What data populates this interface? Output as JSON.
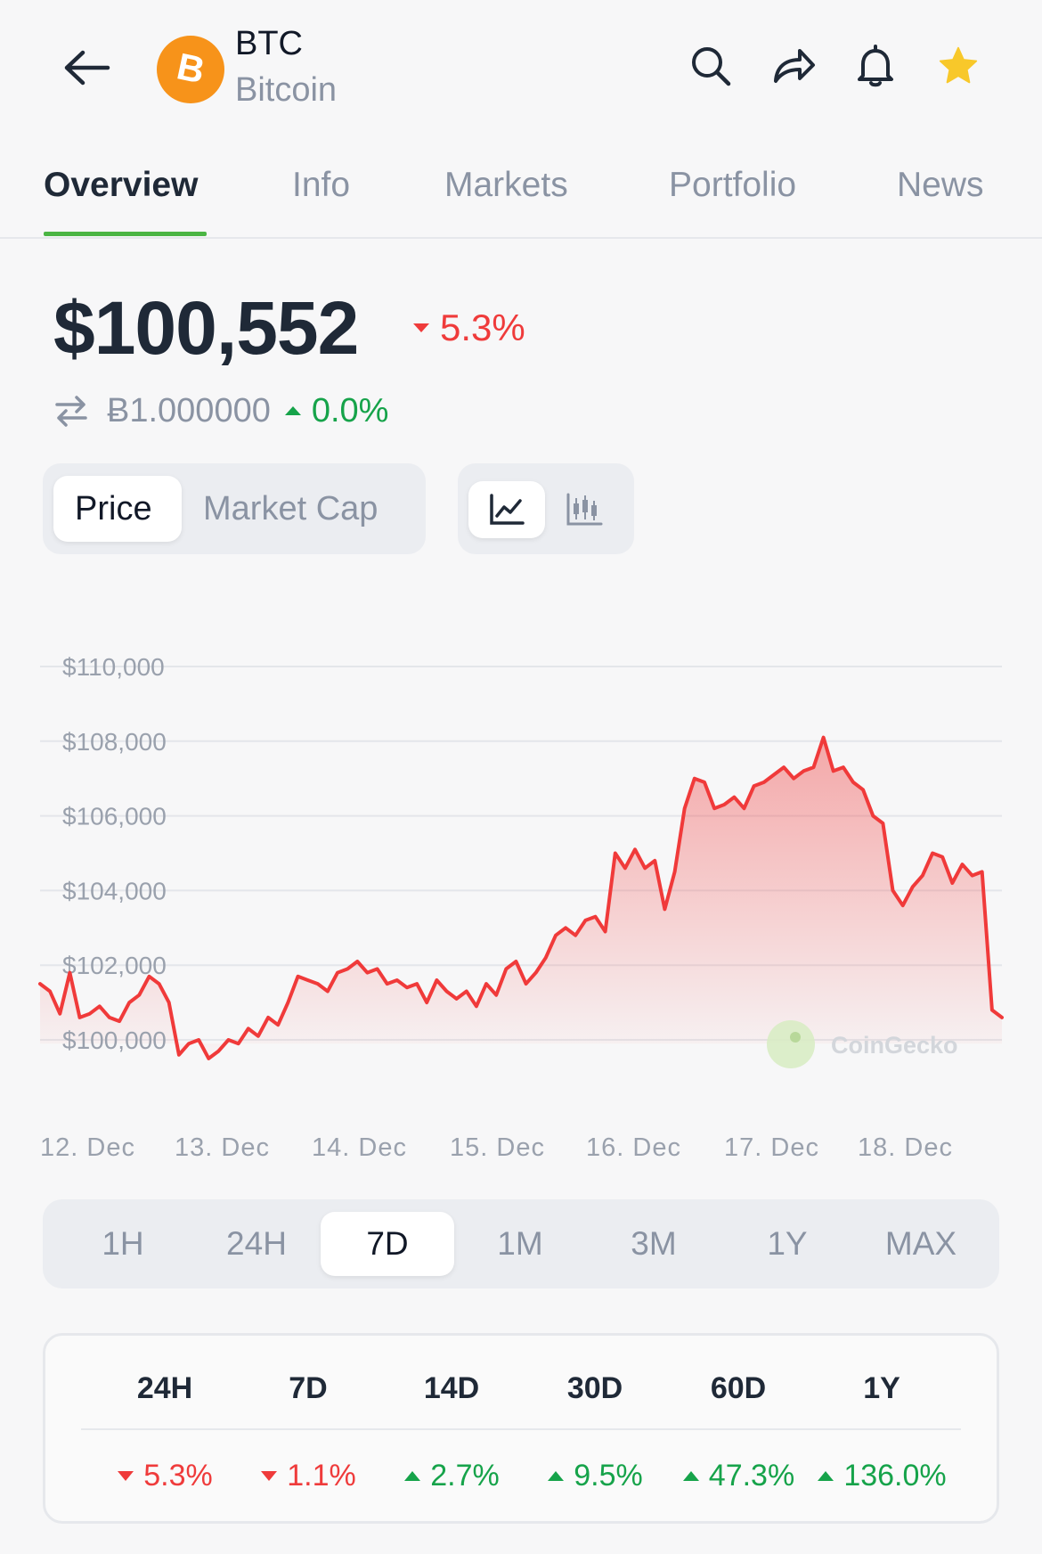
{
  "header": {
    "symbol": "BTC",
    "name": "Bitcoin",
    "icons": [
      "back-arrow-icon",
      "bitcoin-logo-icon",
      "search-icon",
      "share-icon",
      "bell-icon",
      "star-icon"
    ],
    "star_color": "#f8c82a"
  },
  "tabs": [
    {
      "label": "Overview",
      "active": true
    },
    {
      "label": "Info"
    },
    {
      "label": "Markets"
    },
    {
      "label": "Portfolio"
    },
    {
      "label": "News"
    }
  ],
  "price": {
    "value": "$100,552",
    "change": "5.3%",
    "change_direction": "down",
    "btc_value": "Ƀ1.000000",
    "btc_change": "0.0%",
    "btc_change_direction": "up"
  },
  "toggles": {
    "metric": {
      "options": [
        "Price",
        "Market Cap"
      ],
      "selected": "Price"
    },
    "chart_type": {
      "options": [
        "line-chart-icon",
        "candlestick-chart-icon"
      ],
      "selected": "line-chart-icon"
    }
  },
  "chart_data": {
    "type": "area",
    "title": "",
    "xlabel": "",
    "ylabel": "",
    "x_ticks": [
      "12. Dec",
      "13. Dec",
      "14. Dec",
      "15. Dec",
      "16. Dec",
      "17. Dec",
      "18. Dec"
    ],
    "y_ticks": [
      "$110,000",
      "$108,000",
      "$106,000",
      "$104,000",
      "$102,000",
      "$100,000"
    ],
    "ylim": [
      99000,
      110500
    ],
    "grid": true,
    "line_color": "#f03a3a",
    "watermark": "CoinGecko",
    "series": [
      {
        "values": [
          101500,
          101300,
          100700,
          101800,
          100600,
          100700,
          100900,
          100600,
          100500,
          101000,
          101200,
          101700,
          101500,
          101000,
          99600,
          99900,
          100000,
          99500,
          99700,
          100000,
          99900,
          100300,
          100100,
          100600,
          100400,
          101000,
          101700,
          101600,
          101500,
          101300,
          101800,
          101900,
          102100,
          101800,
          101900,
          101500,
          101600,
          101400,
          101500,
          101000,
          101600,
          101300,
          101100,
          101300,
          100900,
          101500,
          101200,
          101900,
          102100,
          101500,
          101800,
          102200,
          102800,
          103000,
          102800,
          103200,
          103300,
          102900,
          105000,
          104600,
          105100,
          104600,
          104800,
          103500,
          104500,
          106200,
          107000,
          106900,
          106200,
          106300,
          106500,
          106200,
          106800,
          106900,
          107100,
          107300,
          107000,
          107200,
          107300,
          108100,
          107200,
          107300,
          106900,
          106700,
          106000,
          105800,
          104000,
          103600,
          104100,
          104400,
          105000,
          104900,
          104200,
          104700,
          104400,
          104500,
          100800,
          100600
        ]
      }
    ]
  },
  "time_ranges": {
    "options": [
      "1H",
      "24H",
      "7D",
      "1M",
      "3M",
      "1Y",
      "MAX"
    ],
    "selected": "7D"
  },
  "performance": [
    {
      "period": "24H",
      "change": "5.3%",
      "direction": "down"
    },
    {
      "period": "7D",
      "change": "1.1%",
      "direction": "down"
    },
    {
      "period": "14D",
      "change": "2.7%",
      "direction": "up"
    },
    {
      "period": "30D",
      "change": "9.5%",
      "direction": "up"
    },
    {
      "period": "60D",
      "change": "47.3%",
      "direction": "up"
    },
    {
      "period": "1Y",
      "change": "136.0%",
      "direction": "up"
    }
  ],
  "colors": {
    "down": "#ef3b3b",
    "up": "#16a34a",
    "accent": "#4bb544"
  }
}
